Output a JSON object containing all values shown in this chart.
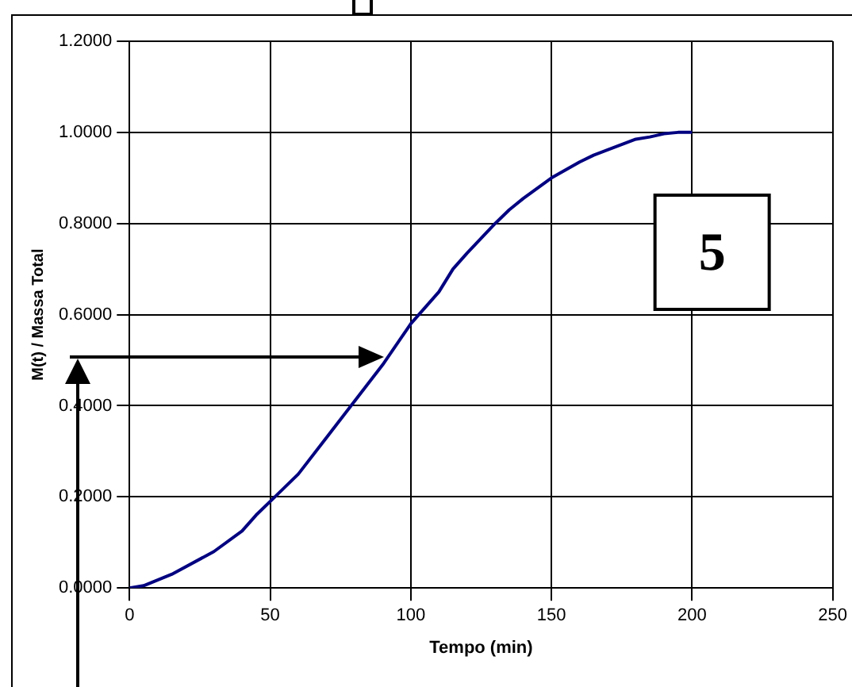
{
  "chart_data": {
    "type": "line",
    "xlabel": "Tempo (min)",
    "ylabel": "M(t) / Massa Total",
    "annotations": [
      "5"
    ],
    "x": [
      0,
      5,
      15,
      30,
      40,
      45,
      50,
      60,
      70,
      80,
      90,
      100,
      110,
      115,
      120,
      130,
      135,
      140,
      150,
      160,
      165,
      180,
      185,
      190,
      195,
      200
    ],
    "series": [
      {
        "color": "#000080",
        "values": [
          0,
          0.005,
          0.03,
          0.08,
          0.125,
          0.16,
          0.19,
          0.25,
          0.33,
          0.41,
          0.49,
          0.58,
          0.65,
          0.7,
          0.735,
          0.8,
          0.83,
          0.855,
          0.9,
          0.935,
          0.95,
          0.985,
          0.99,
          0.997,
          1.0,
          1.0
        ]
      }
    ],
    "xlim": [
      0,
      250
    ],
    "xticks": [
      0,
      50,
      100,
      150,
      200,
      250
    ],
    "ylim": [
      0,
      1.2
    ],
    "yticks": [
      {
        "value": 0,
        "label": "0.0000"
      },
      {
        "value": 0.2,
        "label": "0.2000"
      },
      {
        "value": 0.4,
        "label": "0.4000"
      },
      {
        "value": 0.6,
        "label": "0.6000"
      },
      {
        "value": 0.8,
        "label": "0.8000"
      },
      {
        "value": 1,
        "label": "1.0000"
      },
      {
        "value": 1.2,
        "label": "1.2000"
      }
    ],
    "grid": true,
    "legend": false,
    "marker": "none",
    "line_style": "solid"
  }
}
